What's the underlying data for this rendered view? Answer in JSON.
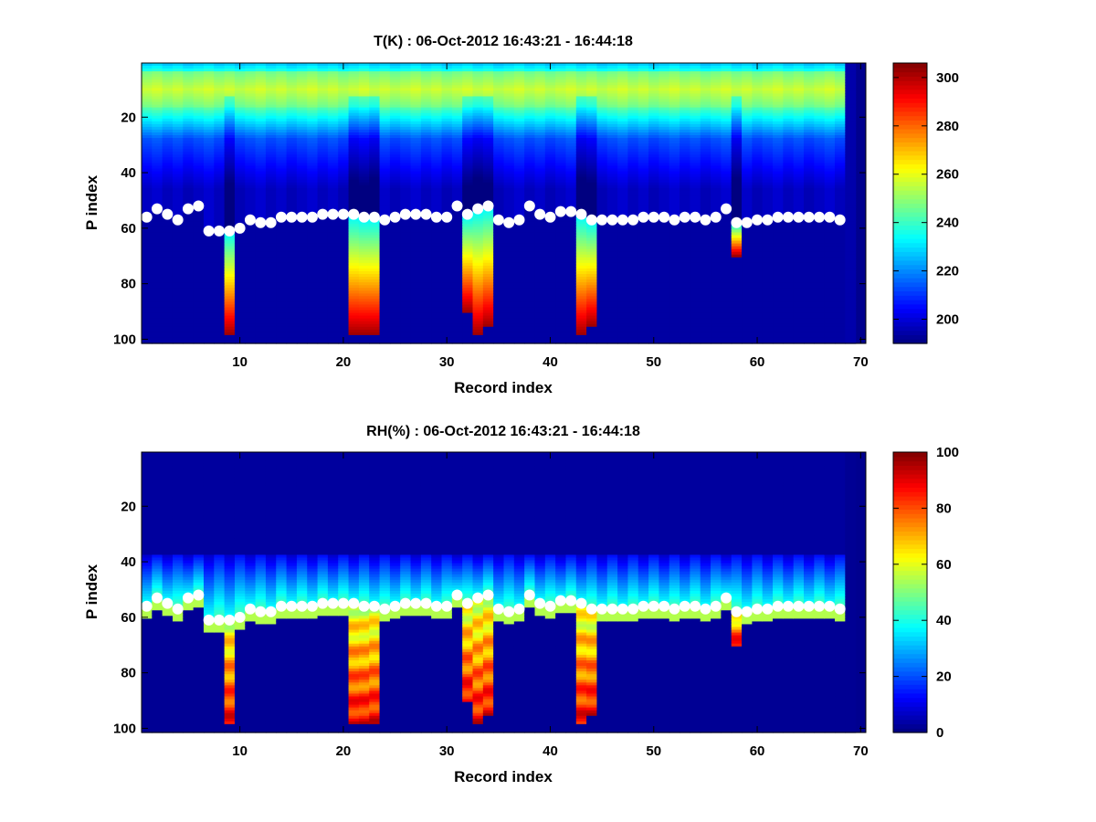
{
  "figure": {
    "background": "#ffffff"
  },
  "chart_data": [
    {
      "type": "heatmap",
      "title": "T(K) : 06-Oct-2012 16:43:21 - 16:44:18",
      "xlabel": "Record index",
      "ylabel": "P index",
      "xlim": [
        0.5,
        70.5
      ],
      "ylim": [
        0.5,
        101.5
      ],
      "y_reversed": true,
      "xticks": [
        "10",
        "20",
        "30",
        "40",
        "50",
        "60",
        "70"
      ],
      "yticks": [
        "20",
        "40",
        "60",
        "80",
        "100"
      ],
      "num_records": 68,
      "num_levels": 101,
      "background_value_color": "#00008f",
      "colormap": "jet",
      "colorbar": {
        "min": 190,
        "max": 306,
        "ticks": [
          "200",
          "220",
          "240",
          "260",
          "280",
          "300"
        ]
      },
      "surface_levels": [
        56,
        53,
        55,
        57,
        53,
        52,
        61,
        61,
        61,
        60,
        57,
        58,
        58,
        56,
        56,
        56,
        56,
        55,
        55,
        55,
        55,
        56,
        56,
        57,
        56,
        55,
        55,
        55,
        56,
        56,
        52,
        55,
        53,
        52,
        57,
        58,
        57,
        52,
        55,
        56,
        54,
        54,
        55,
        57,
        57,
        57,
        57,
        57,
        56,
        56,
        56,
        57,
        56,
        56,
        57,
        56,
        53,
        58,
        58,
        57,
        57,
        56,
        56,
        56,
        56,
        56,
        56,
        57
      ],
      "deep_profiles": [
        {
          "record": 9,
          "bottom": 98,
          "cold_above": 64
        },
        {
          "record": 21,
          "bottom": 98,
          "cold_above": 56
        },
        {
          "record": 22,
          "bottom": 98,
          "cold_above": 56
        },
        {
          "record": 23,
          "bottom": 98,
          "cold_above": 56
        },
        {
          "record": 32,
          "bottom": 90,
          "cold_above": 56
        },
        {
          "record": 33,
          "bottom": 98,
          "cold_above": 56
        },
        {
          "record": 34,
          "bottom": 95,
          "cold_above": 56
        },
        {
          "record": 43,
          "bottom": 98,
          "cold_above": 56
        },
        {
          "record": 44,
          "bottom": 95,
          "cold_above": 56
        },
        {
          "record": 58,
          "bottom": 70,
          "cold_above": 58
        }
      ]
    },
    {
      "type": "heatmap",
      "title": "RH(%) : 06-Oct-2012 16:43:21 - 16:44:18",
      "xlabel": "Record index",
      "ylabel": "P index",
      "xlim": [
        0.5,
        70.5
      ],
      "ylim": [
        0.5,
        101.5
      ],
      "y_reversed": true,
      "xticks": [
        "10",
        "20",
        "30",
        "40",
        "50",
        "60",
        "70"
      ],
      "yticks": [
        "20",
        "40",
        "60",
        "80",
        "100"
      ],
      "num_records": 68,
      "num_levels": 101,
      "background_value_color": "#00008f",
      "colormap": "jet",
      "colorbar": {
        "min": 0,
        "max": 100,
        "ticks": [
          "0",
          "20",
          "40",
          "60",
          "80",
          "100"
        ]
      },
      "surface_levels": [
        56,
        53,
        55,
        57,
        53,
        52,
        61,
        61,
        61,
        60,
        57,
        58,
        58,
        56,
        56,
        56,
        56,
        55,
        55,
        55,
        55,
        56,
        56,
        57,
        56,
        55,
        55,
        55,
        56,
        56,
        52,
        55,
        53,
        52,
        57,
        58,
        57,
        52,
        55,
        56,
        54,
        54,
        55,
        57,
        57,
        57,
        57,
        57,
        56,
        56,
        56,
        57,
        56,
        56,
        57,
        56,
        53,
        58,
        58,
        57,
        57,
        56,
        56,
        56,
        56,
        56,
        56,
        57
      ],
      "deep_profiles": [
        {
          "record": 9,
          "bottom": 98
        },
        {
          "record": 21,
          "bottom": 98
        },
        {
          "record": 22,
          "bottom": 98
        },
        {
          "record": 23,
          "bottom": 98
        },
        {
          "record": 32,
          "bottom": 90
        },
        {
          "record": 33,
          "bottom": 98
        },
        {
          "record": 34,
          "bottom": 95
        },
        {
          "record": 43,
          "bottom": 98
        },
        {
          "record": 44,
          "bottom": 95
        },
        {
          "record": 58,
          "bottom": 70
        }
      ]
    }
  ]
}
